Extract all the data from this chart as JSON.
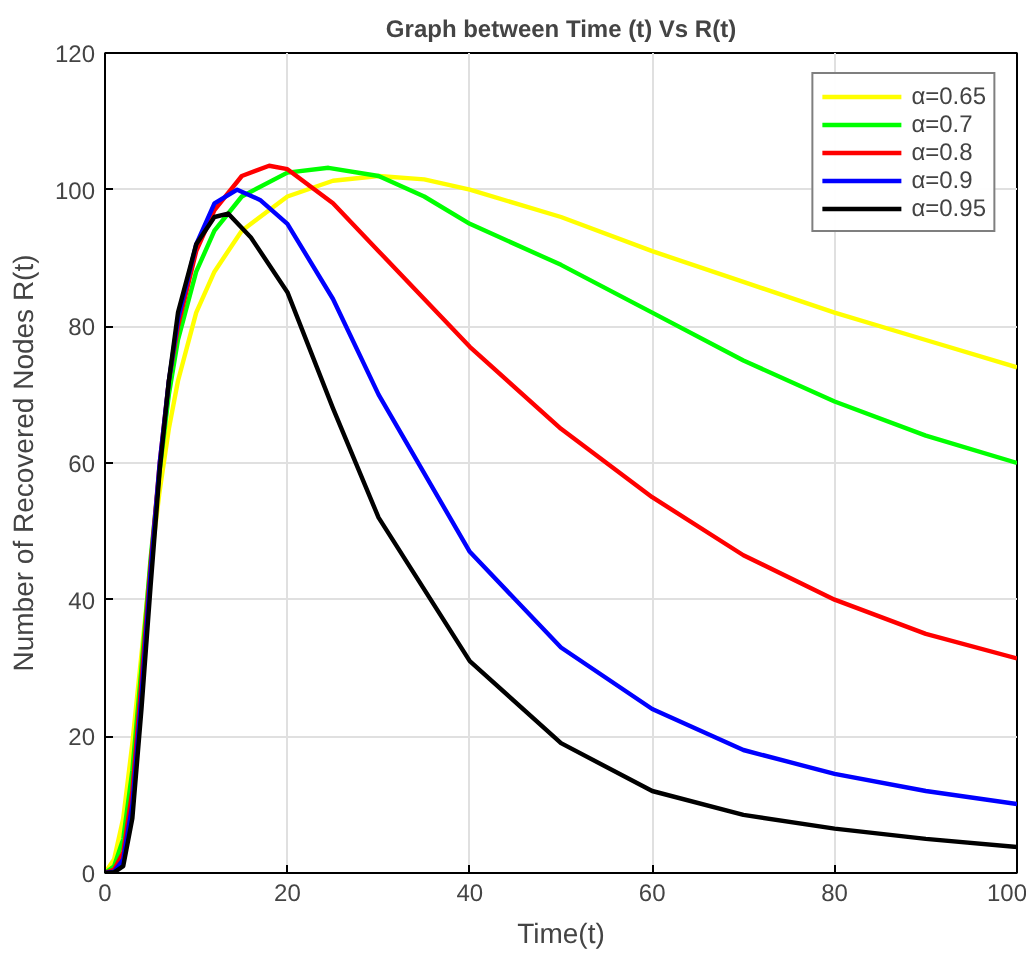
{
  "chart_data": {
    "type": "line",
    "title": "Graph between Time (t) Vs R(t)",
    "xlabel": "Time(t)",
    "ylabel": "Number of Recovered Nodes R(t)",
    "xlim": [
      0,
      100
    ],
    "ylim": [
      0,
      120
    ],
    "xticks": [
      0,
      20,
      40,
      60,
      80,
      100
    ],
    "yticks": [
      0,
      20,
      40,
      60,
      80,
      100,
      120
    ],
    "grid": true,
    "legend": "top right",
    "line_style": "solid",
    "series": [
      {
        "name": "α=0.65",
        "color": "#ffff00",
        "x": [
          0,
          1,
          2,
          3,
          4,
          5,
          6,
          7,
          8,
          10,
          12,
          15,
          20,
          25,
          30,
          35,
          40,
          50,
          60,
          70,
          80,
          90,
          100
        ],
        "values": [
          0,
          2,
          8,
          19,
          32,
          45,
          56,
          65,
          72,
          82,
          88,
          94,
          99,
          101.3,
          102,
          101.5,
          100,
          96,
          91,
          86.5,
          82,
          78,
          74
        ]
      },
      {
        "name": "α=0.7",
        "color": "#00ff00",
        "x": [
          0,
          1,
          2,
          3,
          4,
          5,
          6,
          7,
          8,
          10,
          12,
          15,
          20,
          24.5,
          30,
          35,
          40,
          50,
          60,
          70,
          80,
          90,
          100
        ],
        "values": [
          0,
          1,
          5,
          15,
          30,
          46,
          59,
          70,
          78,
          88,
          94,
          99,
          102.5,
          103.2,
          102,
          99,
          95,
          89,
          82,
          75,
          69,
          64,
          60
        ]
      },
      {
        "name": "α=0.8",
        "color": "#ff0000",
        "x": [
          0,
          1,
          2,
          3,
          4,
          5,
          6,
          7,
          8,
          10,
          12,
          15,
          18,
          20,
          25,
          30,
          40,
          50,
          60,
          70,
          80,
          90,
          100
        ],
        "values": [
          0,
          0.5,
          3,
          12,
          28,
          45,
          60,
          72,
          80,
          91,
          97,
          102,
          103.5,
          103,
          98,
          91,
          77,
          65,
          55,
          46.5,
          40,
          35,
          31.4
        ]
      },
      {
        "name": "α=0.9",
        "color": "#0000ff",
        "x": [
          0,
          1,
          2,
          3,
          4,
          5,
          6,
          7,
          8,
          10,
          12,
          14.5,
          17,
          20,
          25,
          30,
          40,
          50,
          60,
          70,
          80,
          90,
          100
        ],
        "values": [
          0,
          0.2,
          2,
          10,
          26,
          44,
          60,
          72,
          81,
          92,
          98,
          100,
          98.5,
          95,
          84,
          70,
          47,
          33,
          24,
          18,
          14.5,
          12,
          10.1
        ]
      },
      {
        "name": "α=0.95",
        "color": "#000000",
        "x": [
          0,
          1,
          2,
          3,
          4,
          5,
          6,
          7,
          8,
          10,
          12,
          13.5,
          16,
          20,
          25,
          30,
          40,
          50,
          60,
          70,
          80,
          90,
          100
        ],
        "values": [
          0,
          0.1,
          1,
          8,
          24,
          42,
          59,
          72,
          82,
          92,
          96,
          96.5,
          93,
          85,
          68,
          52,
          31,
          19,
          12,
          8.5,
          6.5,
          5,
          3.8
        ]
      }
    ]
  }
}
